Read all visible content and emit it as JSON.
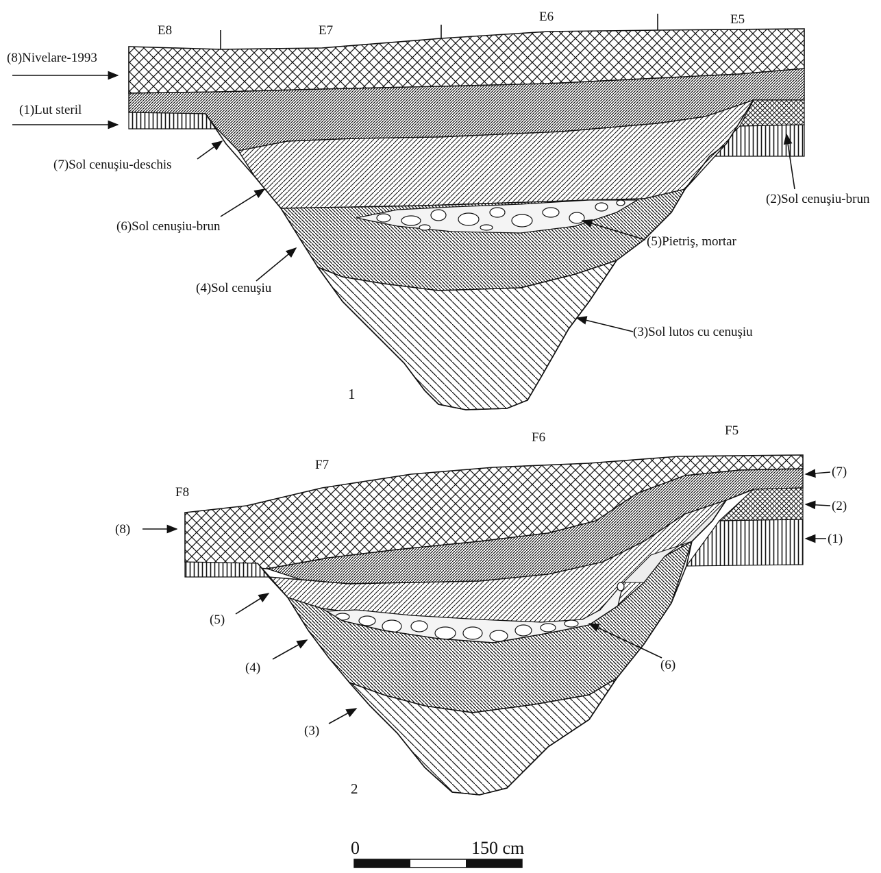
{
  "profile1": {
    "grid": [
      "E8",
      "E7",
      "E6",
      "E5"
    ],
    "labels": {
      "l8": "(8)Nivelare-1993",
      "l1": "(1)Lut steril",
      "l7": "(7)Sol cenuşiu-deschis",
      "l2": "(2)Sol cenuşiu-brun",
      "l6": "(6)Sol cenuşiu-brun",
      "l5": "(5)Pietriş, mortar",
      "l4": "(4)Sol cenuşiu",
      "l3": "(3)Sol lutos cu cenuşiu"
    },
    "number": "1"
  },
  "profile2": {
    "grid": [
      "F8",
      "F7",
      "F6",
      "F5"
    ],
    "labels": {
      "l8": "(8)",
      "l7": "(7)",
      "l2": "(2)",
      "l1": "(1)",
      "l5": "(5)",
      "l4": "(4)",
      "l6": "(6)",
      "l3": "(3)"
    },
    "number": "2"
  },
  "scale": {
    "start": "0",
    "end": "150 cm"
  }
}
